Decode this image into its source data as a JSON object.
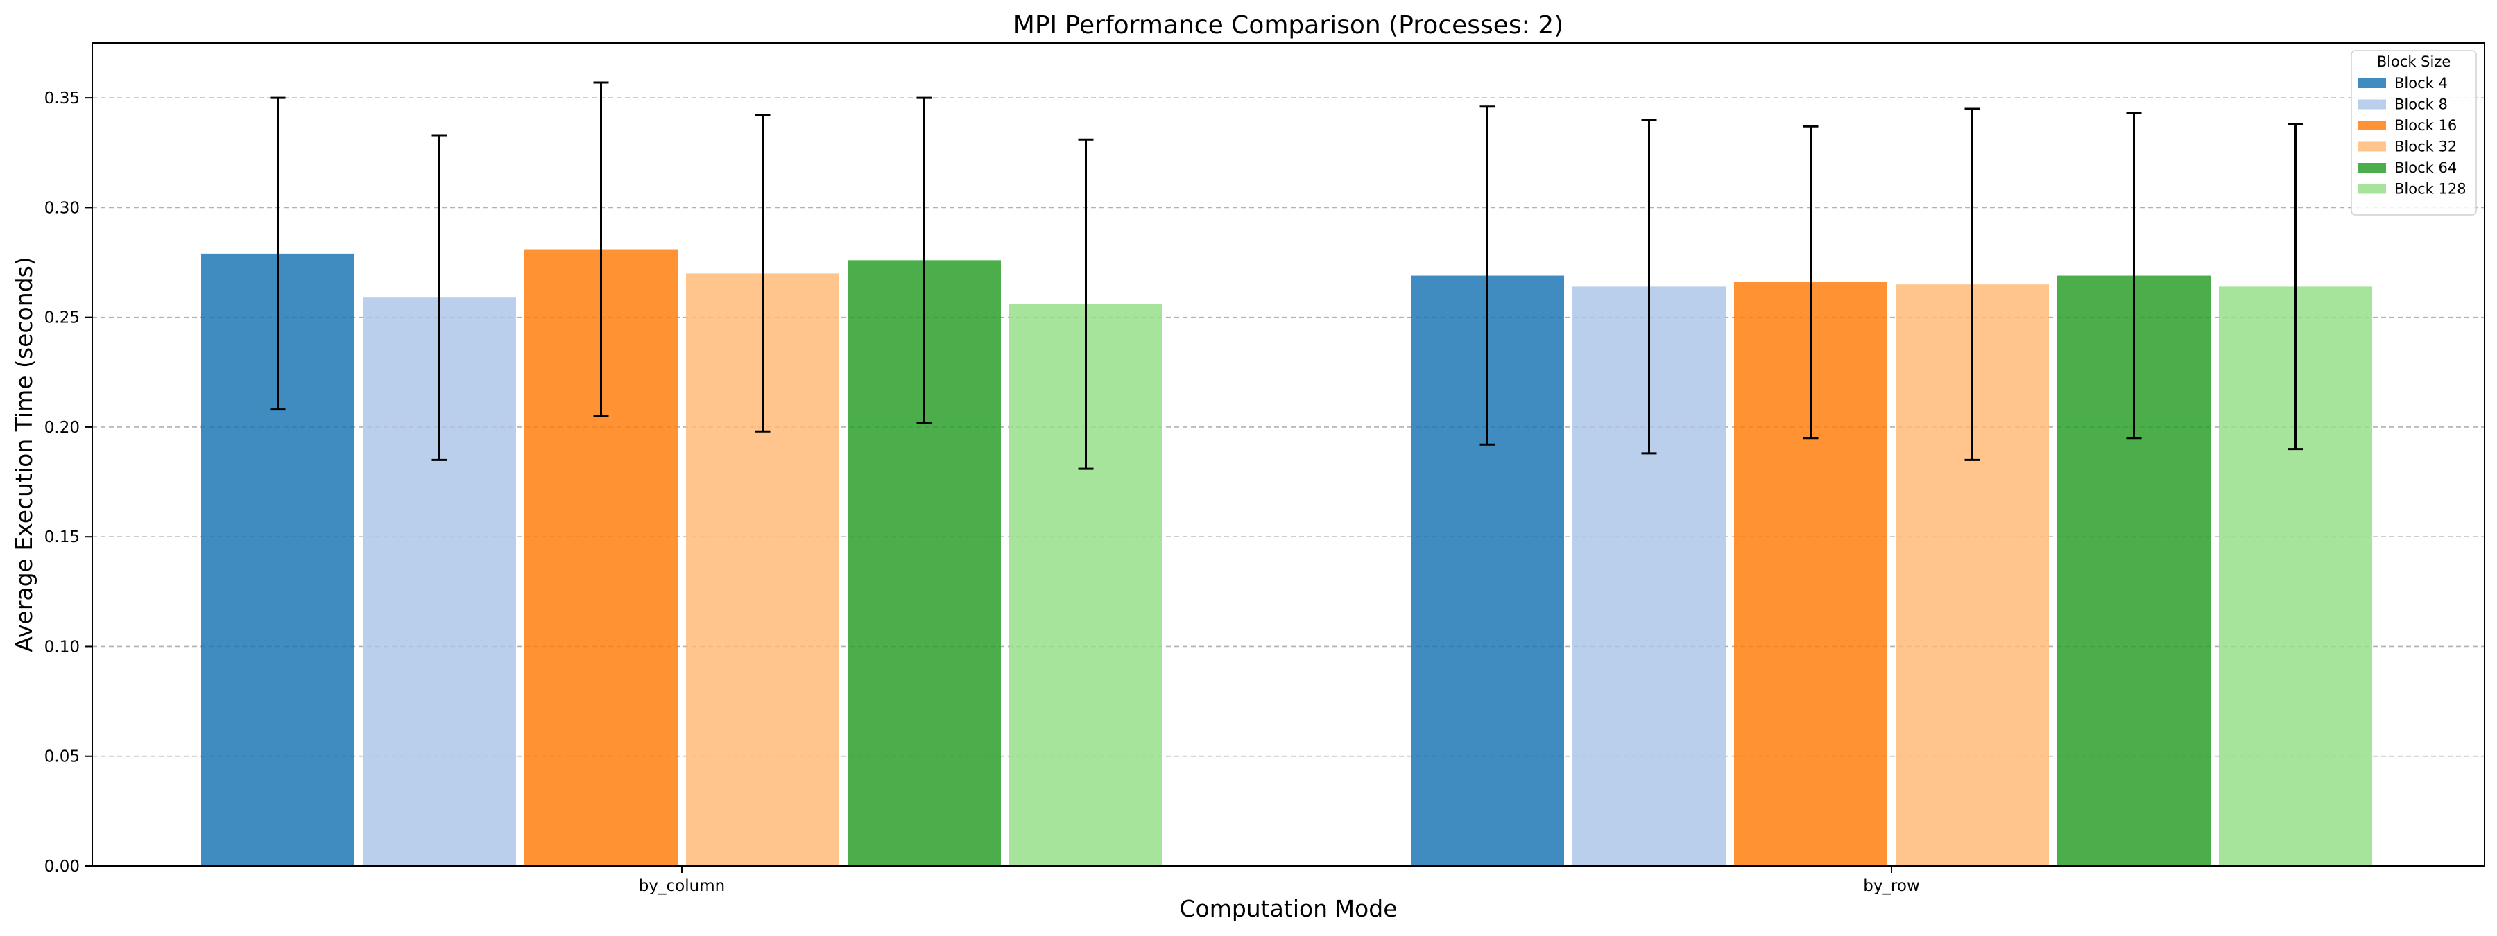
{
  "chart_data": {
    "type": "bar",
    "title": "MPI Performance Comparison (Processes: 2)",
    "xlabel": "Computation Mode",
    "ylabel": "Average Execution Time (seconds)",
    "categories": [
      "by_column",
      "by_row"
    ],
    "ylim": [
      0,
      0.375
    ],
    "yticks": [
      "0.00",
      "0.05",
      "0.10",
      "0.15",
      "0.20",
      "0.25",
      "0.30",
      "0.35"
    ],
    "grid": "horizontal dashed",
    "legend": {
      "title": "Block Size",
      "placement": "top-right"
    },
    "series": [
      {
        "name": "Block 4",
        "color": "#1f77b4",
        "values": [
          0.279,
          0.269
        ],
        "errors": [
          0.071,
          0.077
        ]
      },
      {
        "name": "Block 8",
        "color": "#aec7e8",
        "values": [
          0.259,
          0.264
        ],
        "errors": [
          0.074,
          0.076
        ]
      },
      {
        "name": "Block 16",
        "color": "#ff7f0e",
        "values": [
          0.281,
          0.266
        ],
        "errors": [
          0.076,
          0.071
        ]
      },
      {
        "name": "Block 32",
        "color": "#ffbb78",
        "values": [
          0.27,
          0.265
        ],
        "errors": [
          0.072,
          0.08
        ]
      },
      {
        "name": "Block 64",
        "color": "#2ca02c",
        "values": [
          0.276,
          0.269
        ],
        "errors": [
          0.074,
          0.074
        ]
      },
      {
        "name": "Block 128",
        "color": "#98df8a",
        "values": [
          0.256,
          0.264
        ],
        "errors": [
          0.075,
          0.074
        ]
      }
    ]
  }
}
